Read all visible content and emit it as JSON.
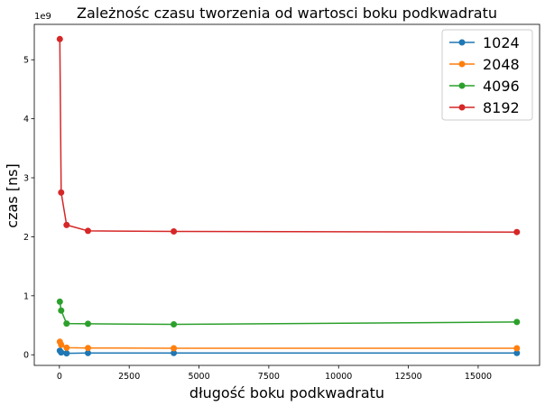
{
  "chart_data": {
    "type": "line",
    "title": "Zależnośc czasu tworzenia od wartosci boku podkwadratu",
    "xlabel": "długość boku podkwadratu",
    "ylabel": "czas [ns]",
    "y_scale_label": "1e9",
    "y_scale_factor": 1000000000,
    "xlim": [
      -900,
      17200
    ],
    "ylim": [
      -0.18,
      5.6
    ],
    "xticks": [
      0,
      2500,
      5000,
      7500,
      10000,
      12500,
      15000
    ],
    "xtick_labels": [
      "0",
      "2500",
      "5000",
      "7500",
      "10000",
      "12500",
      "15000"
    ],
    "yticks": [
      0,
      1,
      2,
      3,
      4,
      5
    ],
    "ytick_labels": [
      "0",
      "1",
      "2",
      "3",
      "4",
      "5"
    ],
    "grid": false,
    "legend_position": "top-right",
    "x": [
      16,
      64,
      256,
      1024,
      4096,
      16384
    ],
    "series": [
      {
        "name": "1024",
        "color": "#1f77b4",
        "values": [
          0.07,
          0.04,
          0.025,
          0.03,
          0.03,
          0.03
        ]
      },
      {
        "name": "2048",
        "color": "#ff7f0e",
        "values": [
          0.22,
          0.17,
          0.12,
          0.115,
          0.11,
          0.11
        ]
      },
      {
        "name": "4096",
        "color": "#2ca02c",
        "values": [
          0.9,
          0.75,
          0.53,
          0.525,
          0.515,
          0.555
        ]
      },
      {
        "name": "8192",
        "color": "#d62728",
        "values": [
          5.35,
          2.75,
          2.2,
          2.1,
          2.09,
          2.08
        ]
      }
    ]
  }
}
